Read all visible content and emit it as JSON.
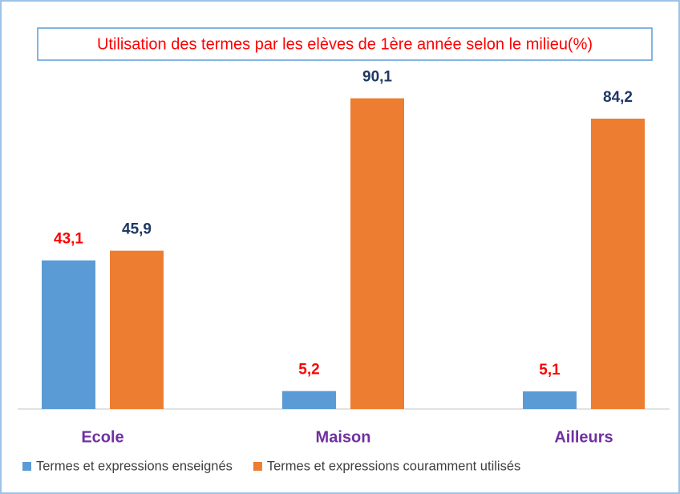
{
  "chart_data": {
    "type": "bar",
    "title": "Utilisation des termes par les elèves de 1ère année selon le milieu(%)",
    "categories": [
      "Ecole",
      "Maison",
      "Ailleurs"
    ],
    "series": [
      {
        "name": "Termes et expressions enseignés",
        "color": "#5b9bd5",
        "label_color": "#ff0000",
        "values": [
          43.1,
          5.2,
          5.1
        ],
        "value_labels": [
          "43,1",
          "5,2",
          "5,1"
        ]
      },
      {
        "name": "Termes et expressions couramment utilisés",
        "color": "#ed7d31",
        "label_color": "#1f3864",
        "values": [
          45.9,
          90.1,
          84.2
        ],
        "value_labels": [
          "45,9",
          "90,1",
          "84,2"
        ]
      }
    ],
    "ylim": [
      0,
      100
    ]
  }
}
